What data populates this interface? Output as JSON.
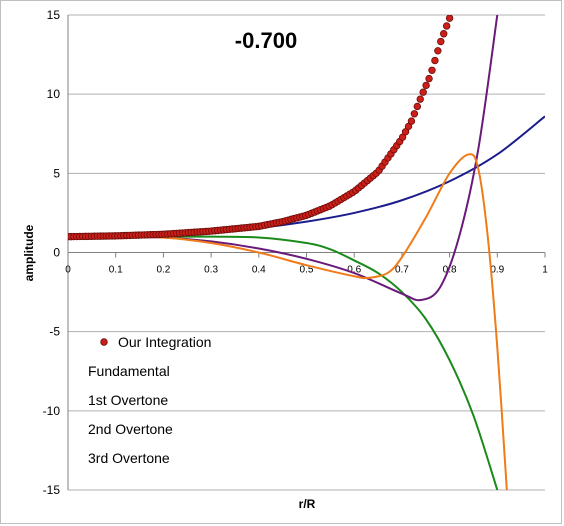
{
  "chart_data": {
    "type": "line",
    "title": "-0.700",
    "xlabel": "r/R",
    "ylabel": "amplitude",
    "xlim": [
      0,
      1
    ],
    "ylim": [
      -15,
      15
    ],
    "x_ticks": [
      "0",
      "0.1",
      "0.2",
      "0.3",
      "0.4",
      "0.5",
      "0.6",
      "0.7",
      "0.8",
      "0.9",
      "1"
    ],
    "y_ticks": [
      "15",
      "10",
      "5",
      "0",
      "-5",
      "-10",
      "-15"
    ],
    "grid": "horizontal",
    "legend_position": "bottom-left",
    "series": [
      {
        "name": "Our Integration",
        "style": "markers",
        "color": "#cc1f1a",
        "x": [
          0.0,
          0.1,
          0.2,
          0.3,
          0.4,
          0.45,
          0.5,
          0.55,
          0.6,
          0.65,
          0.7,
          0.72,
          0.74,
          0.76,
          0.78,
          0.8
        ],
        "y": [
          1.0,
          1.05,
          1.15,
          1.35,
          1.65,
          1.95,
          2.35,
          2.95,
          3.85,
          5.1,
          7.2,
          8.3,
          9.8,
          11.2,
          13.2,
          14.8
        ]
      },
      {
        "name": "Fundamental",
        "style": "line",
        "color": "#1c1c8c",
        "x": [
          0.0,
          0.1,
          0.2,
          0.3,
          0.4,
          0.5,
          0.6,
          0.7,
          0.8,
          0.9,
          1.0
        ],
        "y": [
          1.0,
          1.05,
          1.15,
          1.3,
          1.55,
          1.95,
          2.5,
          3.3,
          4.5,
          6.2,
          8.6
        ]
      },
      {
        "name": "1st Overtone",
        "style": "line",
        "color": "#1a8a1a",
        "x": [
          0.0,
          0.1,
          0.2,
          0.3,
          0.4,
          0.5,
          0.55,
          0.6,
          0.65,
          0.7,
          0.75,
          0.8,
          0.85,
          0.9
        ],
        "y": [
          1.0,
          1.0,
          1.0,
          1.0,
          0.95,
          0.6,
          0.2,
          -0.5,
          -1.3,
          -2.5,
          -4.2,
          -6.8,
          -10.3,
          -15.0
        ]
      },
      {
        "name": "2nd Overtone",
        "style": "line",
        "color": "#6a1a7a",
        "x": [
          0.0,
          0.1,
          0.2,
          0.3,
          0.4,
          0.5,
          0.6,
          0.7,
          0.74,
          0.78,
          0.82,
          0.86,
          0.9
        ],
        "y": [
          1.0,
          1.0,
          0.95,
          0.7,
          0.25,
          -0.4,
          -1.3,
          -2.6,
          -3.0,
          -2.2,
          1.0,
          6.5,
          15.0
        ]
      },
      {
        "name": "3rd Overtone",
        "style": "line",
        "color": "#f07b18",
        "x": [
          0.0,
          0.1,
          0.2,
          0.3,
          0.4,
          0.5,
          0.6,
          0.63,
          0.67,
          0.7,
          0.75,
          0.8,
          0.84,
          0.86,
          0.88,
          0.9,
          0.92
        ],
        "y": [
          1.0,
          1.0,
          0.95,
          0.6,
          0.0,
          -0.8,
          -1.5,
          -1.6,
          -1.3,
          -0.3,
          2.2,
          5.0,
          6.2,
          5.3,
          1.0,
          -6.0,
          -15.0
        ]
      }
    ]
  }
}
